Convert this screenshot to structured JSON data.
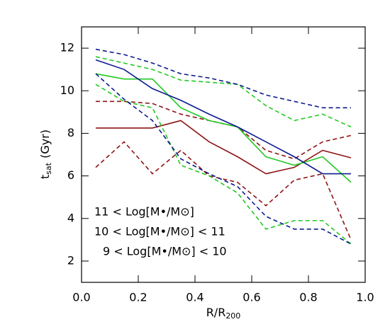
{
  "chart_data": {
    "type": "line",
    "xlabel": {
      "main": "R/R",
      "sub": "200"
    },
    "ylabel": {
      "main": "t",
      "sub": "sat",
      "unit": "(Gyr)"
    },
    "x": [
      0.05,
      0.15,
      0.25,
      0.35,
      0.45,
      0.55,
      0.65,
      0.75,
      0.85,
      0.95
    ],
    "xlim": [
      0,
      1
    ],
    "xticks": [
      {
        "value": 0,
        "label": "0.0"
      },
      0.2,
      0.4,
      0.6,
      0.8,
      {
        "value": 1,
        "label": "1.0"
      }
    ],
    "ylim": [
      1,
      13
    ],
    "yticks": [
      2,
      4,
      6,
      8,
      10,
      12
    ],
    "series": [
      {
        "name": "11 < Log[M•/M⊙]",
        "color": "#8e1414",
        "values": [
          8.25,
          8.25,
          8.25,
          8.6,
          7.6,
          6.9,
          6.1,
          6.4,
          7.2,
          6.85
        ],
        "upper": [
          9.5,
          9.5,
          9.4,
          8.9,
          8.6,
          8.3,
          7.2,
          6.8,
          7.6,
          7.9
        ],
        "lower": [
          6.4,
          7.6,
          6.1,
          7.2,
          6.0,
          5.7,
          4.6,
          5.8,
          6.1,
          3.0
        ]
      },
      {
        "name": "10 < Log[M•/M⊙] < 11",
        "color": "#22c922",
        "values": [
          10.8,
          10.55,
          10.55,
          9.2,
          8.6,
          8.3,
          6.9,
          6.5,
          6.9,
          5.7
        ],
        "upper": [
          11.6,
          11.3,
          11.0,
          10.5,
          10.4,
          10.3,
          9.3,
          8.6,
          8.9,
          8.3
        ],
        "lower": [
          10.3,
          9.5,
          9.2,
          6.5,
          6.0,
          5.2,
          3.5,
          3.9,
          3.9,
          2.8
        ]
      },
      {
        "name": "9 < Log[M•/M⊙] < 10",
        "color": "#0c1a8e",
        "values": [
          11.45,
          11.0,
          10.1,
          9.55,
          8.9,
          8.3,
          7.6,
          6.9,
          6.1,
          6.1
        ],
        "upper": [
          11.95,
          11.7,
          11.3,
          10.8,
          10.6,
          10.3,
          9.8,
          9.5,
          9.2,
          9.2
        ],
        "lower": [
          10.8,
          9.6,
          8.6,
          6.8,
          6.1,
          5.5,
          4.1,
          3.5,
          3.5,
          2.8
        ]
      }
    ]
  }
}
